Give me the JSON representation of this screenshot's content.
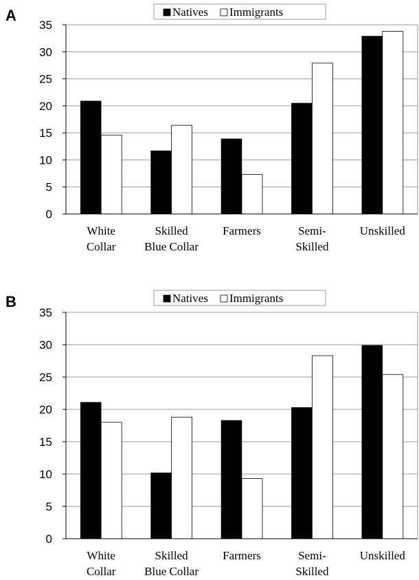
{
  "chart_data": [
    {
      "type": "bar",
      "panel_label": "A",
      "categories": [
        [
          "White",
          "Collar"
        ],
        [
          "Skilled",
          "Blue Collar"
        ],
        [
          "Farmers"
        ],
        [
          "Semi-",
          "Skilled"
        ],
        [
          "Unskilled"
        ]
      ],
      "series": [
        {
          "name": "Natives",
          "color": "#000000",
          "values": [
            20.9,
            11.7,
            13.9,
            20.5,
            32.9
          ]
        },
        {
          "name": "Immigrants",
          "color": "#ffffff",
          "values": [
            14.6,
            16.4,
            7.3,
            27.9,
            33.8
          ]
        }
      ],
      "ylim": [
        0,
        35
      ],
      "yticks": [
        0,
        5,
        10,
        15,
        20,
        25,
        30,
        35
      ],
      "grid": true,
      "legend": "top-center"
    },
    {
      "type": "bar",
      "panel_label": "B",
      "categories": [
        [
          "White",
          "Collar"
        ],
        [
          "Skilled",
          "Blue Collar"
        ],
        [
          "Farmers"
        ],
        [
          "Semi-",
          "Skilled"
        ],
        [
          "Unskilled"
        ]
      ],
      "series": [
        {
          "name": "Natives",
          "color": "#000000",
          "values": [
            21.1,
            10.2,
            18.3,
            20.3,
            29.9
          ]
        },
        {
          "name": "Immigrants",
          "color": "#ffffff",
          "values": [
            18.0,
            18.8,
            9.3,
            28.3,
            25.4
          ]
        }
      ],
      "ylim": [
        0,
        35
      ],
      "yticks": [
        0,
        5,
        10,
        15,
        20,
        25,
        30,
        35
      ],
      "grid": true,
      "legend": "top-center"
    }
  ]
}
